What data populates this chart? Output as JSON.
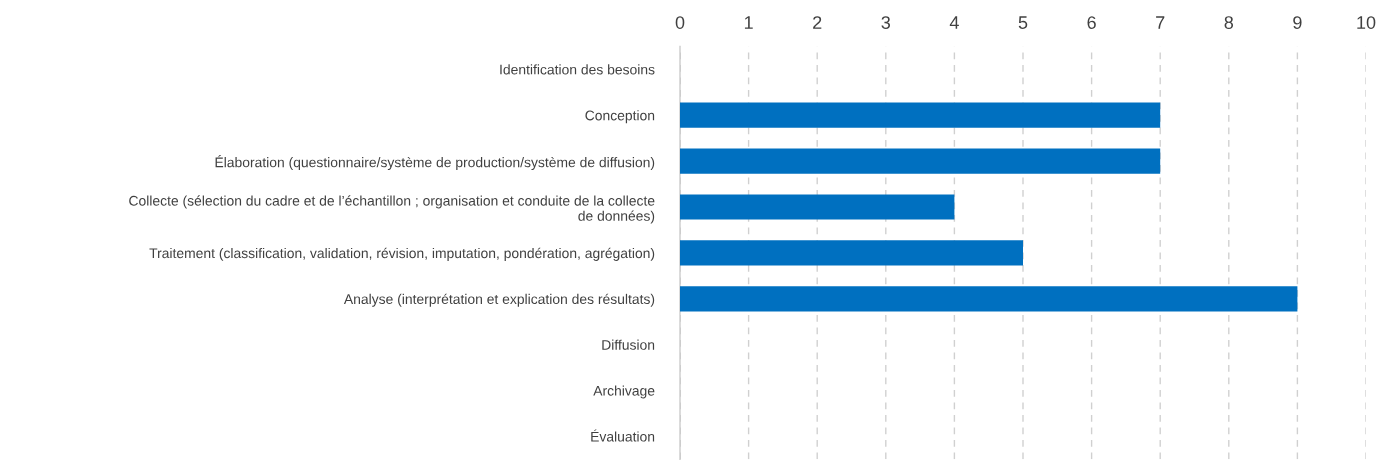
{
  "chart_data": {
    "type": "bar",
    "orientation": "horizontal",
    "categories": [
      "Identification des besoins",
      "Conception",
      "Élaboration (questionnaire/système de production/système de diffusion)",
      "Collecte (sélection du cadre et de l’échantillon ; organisation et conduite de la collecte\nde données)",
      "Traitement (classification, validation, révision, imputation, pondération, agrégation)",
      "Analyse (interprétation et explication des résultats)",
      "Diffusion",
      "Archivage",
      "Évaluation"
    ],
    "values": [
      0,
      7,
      7,
      4,
      5,
      9,
      0,
      0,
      0
    ],
    "color": "#0070c0",
    "xlim": [
      0,
      10
    ],
    "xticks": [
      0,
      1,
      2,
      3,
      4,
      5,
      6,
      7,
      8,
      9,
      10
    ],
    "grid": "x",
    "legend": false
  }
}
